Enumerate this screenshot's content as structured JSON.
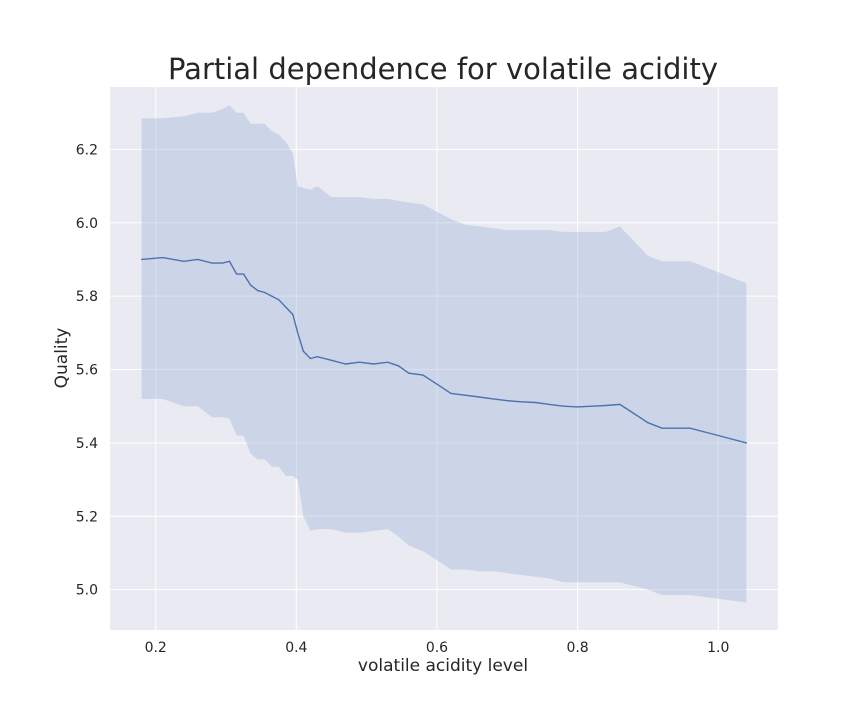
{
  "chart_data": {
    "type": "line",
    "title": "Partial dependence for volatile acidity",
    "xlabel": "volatile acidity level",
    "ylabel": "Quality",
    "xlim": [
      0.135,
      1.085
    ],
    "ylim": [
      4.89,
      6.37
    ],
    "xticks": [
      0.2,
      0.4,
      0.6,
      0.8,
      1.0
    ],
    "xtick_labels": [
      "0.2",
      "0.4",
      "0.6",
      "0.8",
      "1.0"
    ],
    "yticks": [
      5.0,
      5.2,
      5.4,
      5.6,
      5.8,
      6.0,
      6.2
    ],
    "ytick_labels": [
      "5.0",
      "5.2",
      "5.4",
      "5.6",
      "5.8",
      "6.0",
      "6.2"
    ],
    "grid": true,
    "series": [
      {
        "line_color": "#4c72b0",
        "band_color": "#a1b4d8",
        "x": [
          0.18,
          0.21,
          0.24,
          0.26,
          0.28,
          0.295,
          0.305,
          0.315,
          0.325,
          0.335,
          0.345,
          0.355,
          0.365,
          0.375,
          0.385,
          0.395,
          0.402,
          0.41,
          0.42,
          0.43,
          0.45,
          0.47,
          0.49,
          0.51,
          0.53,
          0.545,
          0.56,
          0.58,
          0.6,
          0.62,
          0.64,
          0.66,
          0.68,
          0.7,
          0.72,
          0.74,
          0.76,
          0.78,
          0.8,
          0.82,
          0.84,
          0.86,
          0.88,
          0.9,
          0.92,
          0.96,
          1.0,
          1.04
        ],
        "y": [
          5.9,
          5.905,
          5.895,
          5.9,
          5.89,
          5.89,
          5.895,
          5.86,
          5.86,
          5.83,
          5.815,
          5.81,
          5.8,
          5.79,
          5.77,
          5.75,
          5.7,
          5.65,
          5.63,
          5.635,
          5.625,
          5.615,
          5.62,
          5.615,
          5.62,
          5.61,
          5.59,
          5.585,
          5.56,
          5.535,
          5.53,
          5.525,
          5.52,
          5.515,
          5.512,
          5.51,
          5.505,
          5.5,
          5.498,
          5.5,
          5.502,
          5.505,
          5.48,
          5.455,
          5.44,
          5.44,
          5.42,
          5.4
        ],
        "upper": [
          6.285,
          6.285,
          6.29,
          6.3,
          6.3,
          6.31,
          6.32,
          6.3,
          6.3,
          6.27,
          6.27,
          6.27,
          6.25,
          6.24,
          6.22,
          6.19,
          6.1,
          6.095,
          6.09,
          6.1,
          6.07,
          6.07,
          6.07,
          6.065,
          6.065,
          6.06,
          6.055,
          6.05,
          6.03,
          6.01,
          5.995,
          5.99,
          5.985,
          5.98,
          5.98,
          5.98,
          5.98,
          5.975,
          5.975,
          5.975,
          5.975,
          5.99,
          5.95,
          5.91,
          5.895,
          5.895,
          5.865,
          5.835
        ],
        "lower": [
          5.52,
          5.52,
          5.5,
          5.5,
          5.47,
          5.47,
          5.465,
          5.42,
          5.42,
          5.37,
          5.355,
          5.355,
          5.335,
          5.335,
          5.31,
          5.31,
          5.3,
          5.2,
          5.16,
          5.165,
          5.165,
          5.155,
          5.155,
          5.16,
          5.165,
          5.145,
          5.12,
          5.105,
          5.08,
          5.055,
          5.055,
          5.05,
          5.05,
          5.045,
          5.04,
          5.035,
          5.03,
          5.02,
          5.02,
          5.02,
          5.02,
          5.02,
          5.01,
          5.0,
          4.985,
          4.985,
          4.975,
          4.965
        ]
      }
    ]
  }
}
